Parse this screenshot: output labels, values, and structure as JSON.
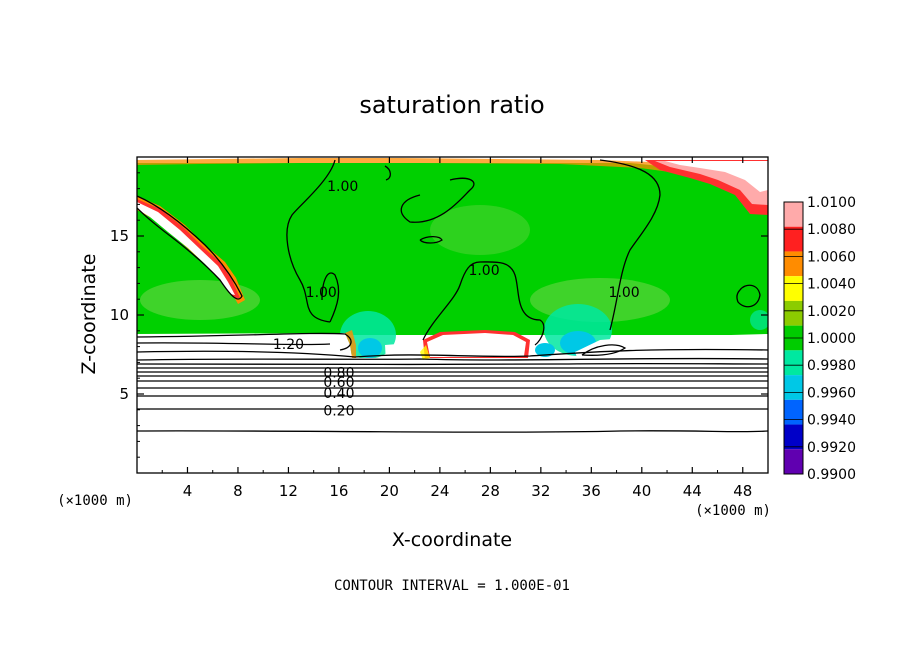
{
  "chart_data": {
    "type": "heatmap",
    "title": "saturation ratio",
    "xlabel": "X-coordinate",
    "ylabel": "Z-coordinate",
    "x_unit": "(×1000 m)",
    "x_unit_right": "(×1000 m)",
    "xlim": [
      0,
      50
    ],
    "ylim": [
      0,
      20
    ],
    "x_ticks": [
      4,
      8,
      12,
      16,
      20,
      24,
      28,
      32,
      36,
      40,
      44,
      48
    ],
    "y_ticks": [
      5,
      10,
      15
    ],
    "footer": "CONTOUR INTERVAL = 1.000E-01",
    "colorbar": {
      "levels": [
        "1.0100",
        "1.0080",
        "1.0060",
        "1.0040",
        "1.0020",
        "1.0000",
        "0.9980",
        "0.9960",
        "0.9940",
        "0.9920",
        "0.9900"
      ],
      "colors": [
        "#ffaaaa",
        "#ff2020",
        "#ff8c00",
        "#ffff00",
        "#8ccc00",
        "#00cc00",
        "#00e8a0",
        "#00c8e6",
        "#0064ff",
        "#0000c8",
        "#6000b0"
      ]
    },
    "contour_labels": [
      {
        "text": "1.00",
        "x": 16.3,
        "y": 18.1
      },
      {
        "text": "1.00",
        "x": 14.6,
        "y": 11.4
      },
      {
        "text": "1.00",
        "x": 27.5,
        "y": 12.8
      },
      {
        "text": "1.00",
        "x": 38.6,
        "y": 11.4
      },
      {
        "text": "1.20",
        "x": 12.0,
        "y": 8.1
      },
      {
        "text": "0.80",
        "x": 16.0,
        "y": 6.3
      },
      {
        "text": "0.60",
        "x": 16.0,
        "y": 5.7
      },
      {
        "text": "0.40",
        "x": 16.0,
        "y": 5.0
      },
      {
        "text": "0.20",
        "x": 16.0,
        "y": 3.9
      }
    ]
  }
}
